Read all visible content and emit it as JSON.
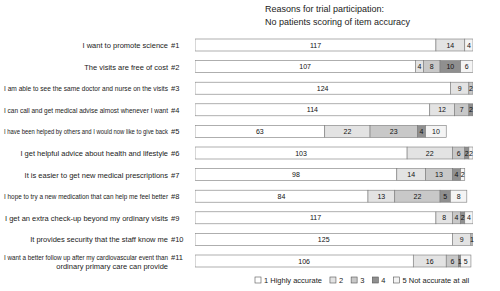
{
  "chart_data": {
    "type": "bar",
    "orientation": "horizontal",
    "stacked": true,
    "data_labels": true,
    "tick_labels": false,
    "grid": false,
    "legend": "bottom",
    "title": "Reasons for trial participation:",
    "subtitle": "No patients scoring of item accuracy",
    "categories": [
      "I want to promote science #1",
      "The visits are free of cost #2",
      "I am able to see the same doctor and nurse on the visits #3",
      "I can call and get medical advise almost whenever I want #4",
      "I have been helped by others and I would now like to give back #5",
      "I get helpful advice about health and lifestyle #6",
      "It is easier to get new medical prescriptions #7",
      "I hope to try a new medication that can help me feel better #8",
      "I get an extra check-up beyond my ordinary visits #9",
      "It provides security that the staff know me #10",
      "I want a better follow up after my cardiovascular event than #11\nordinary primary care can provide"
    ],
    "xlim": [
      0,
      135
    ],
    "series": [
      {
        "name": "1 Highly accurate",
        "color": "#ffffff",
        "values": [
          117,
          107,
          124,
          114,
          63,
          103,
          98,
          84,
          117,
          125,
          106
        ]
      },
      {
        "name": "2",
        "color": "#e3e3e3",
        "values": [
          14,
          4,
          9,
          12,
          22,
          22,
          14,
          13,
          8,
          9,
          16
        ]
      },
      {
        "name": "3",
        "color": "#c8c8c8",
        "values": [
          0,
          8,
          2,
          7,
          23,
          6,
          13,
          22,
          4,
          1,
          6
        ]
      },
      {
        "name": "4",
        "color": "#8f8f8f",
        "values": [
          0,
          10,
          0,
          2,
          4,
          2,
          4,
          5,
          2,
          0,
          1
        ]
      },
      {
        "name": "5 Not accurate at all",
        "color": "#f4f4f4",
        "values": [
          4,
          6,
          0,
          0,
          10,
          2,
          2,
          8,
          4,
          0,
          5
        ]
      }
    ]
  }
}
